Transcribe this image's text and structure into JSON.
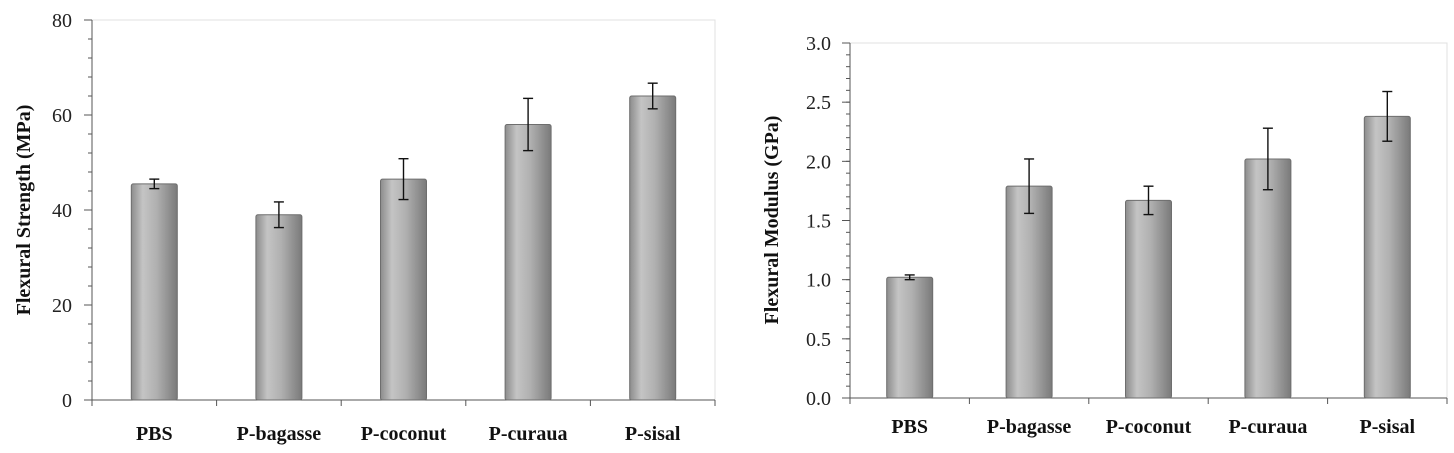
{
  "chart_data": [
    {
      "type": "bar",
      "title": "",
      "xlabel": "",
      "ylabel": "Flexural Strength (MPa)",
      "categories": [
        "PBS",
        "P-bagasse",
        "P-coconut",
        "P-curaua",
        "P-sisal"
      ],
      "values": [
        45.5,
        39.0,
        46.5,
        58.0,
        64.0
      ],
      "errors": [
        1.0,
        2.7,
        4.3,
        5.5,
        2.7
      ],
      "ylim": [
        0,
        80
      ],
      "yticks": [
        0,
        20,
        40,
        60,
        80
      ],
      "ytick_labels": [
        "0",
        "20",
        "40",
        "60",
        "80"
      ],
      "minor_tick_step": 4,
      "grid": false,
      "bar_color": "#a6a6a6"
    },
    {
      "type": "bar",
      "title": "",
      "xlabel": "",
      "ylabel": "Flexural Modulus   (GPa)",
      "categories": [
        "PBS",
        "P-bagasse",
        "P-coconut",
        "P-curaua",
        "P-sisal"
      ],
      "values": [
        1.02,
        1.79,
        1.67,
        2.02,
        2.38
      ],
      "errors": [
        0.02,
        0.23,
        0.12,
        0.26,
        0.21
      ],
      "ylim": [
        0,
        3.0
      ],
      "yticks": [
        0,
        0.5,
        1.0,
        1.5,
        2.0,
        2.5,
        3.0
      ],
      "ytick_labels": [
        "0.0",
        "0.5",
        "1.0",
        "1.5",
        "2.0",
        "2.5",
        "3.0"
      ],
      "minor_tick_step": 0.1,
      "grid": false,
      "bar_color": "#a6a6a6"
    }
  ]
}
